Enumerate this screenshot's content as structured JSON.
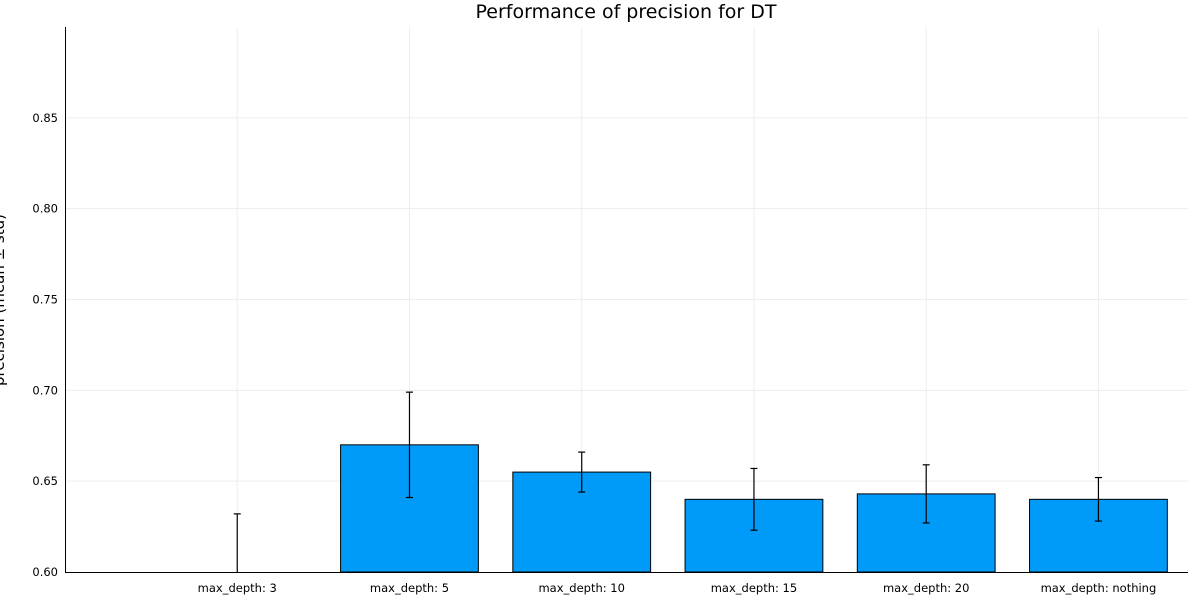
{
  "chart_data": {
    "type": "bar",
    "title": "Performance of precision for DT",
    "xlabel": "",
    "ylabel": "precision (mean ± std)",
    "categories": [
      "max_depth: 3",
      "max_depth: 5",
      "max_depth: 10",
      "max_depth: 15",
      "max_depth: 20",
      "max_depth: nothing"
    ],
    "values": [
      0.596,
      0.67,
      0.655,
      0.64,
      0.643,
      0.64
    ],
    "errors": [
      0.036,
      0.029,
      0.011,
      0.017,
      0.016,
      0.012
    ],
    "ylim": [
      0.6,
      0.9
    ],
    "yticks": [
      0.6,
      0.65,
      0.7,
      0.75,
      0.8,
      0.85
    ],
    "ytick_labels": [
      "0.60",
      "0.65",
      "0.70",
      "0.75",
      "0.80",
      "0.85"
    ],
    "grid": true,
    "legend": "none",
    "bar_color": "#009af9"
  }
}
